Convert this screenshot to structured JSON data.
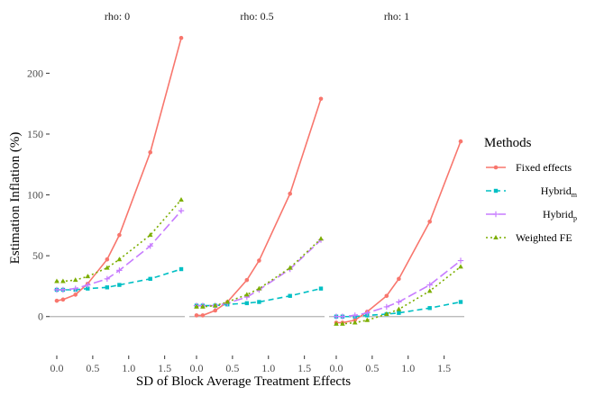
{
  "chart_data": {
    "type": "line",
    "xlabel": "SD of Block Average Treatment Effects",
    "ylabel": "Estimation Inflation (%)",
    "xlim": [
      -0.1,
      1.78
    ],
    "ylim": [
      -32,
      238
    ],
    "x_ticks": [
      0.0,
      0.5,
      1.0,
      1.5
    ],
    "x_tick_labels": [
      "0.0",
      "0.5",
      "1.0",
      "1.5"
    ],
    "y_ticks": [
      0,
      50,
      100,
      150,
      200
    ],
    "y_tick_labels": [
      "0",
      "50",
      "100",
      "150",
      "200"
    ],
    "reference_line": 0,
    "legend": {
      "title": "Methods",
      "position": "right",
      "entries": [
        {
          "label": "Fixed effects",
          "subscript": ""
        },
        {
          "label": "Hybrid",
          "subscript": "m"
        },
        {
          "label": "Hybrid",
          "subscript": "p"
        },
        {
          "label": "Weighted FE",
          "subscript": ""
        }
      ]
    },
    "panels": [
      {
        "title": "rho: 0",
        "x": [
          0,
          0.087,
          0.26,
          0.43,
          0.7,
          0.87,
          1.3,
          1.73
        ],
        "series": [
          {
            "name": "Fixed effects",
            "values": [
              13,
              14,
              18,
              27,
              47,
              67,
              135,
              229
            ]
          },
          {
            "name": "Hybrid_m",
            "values": [
              22,
              22,
              22,
              23,
              24,
              26,
              31,
              39
            ]
          },
          {
            "name": "Hybrid_p",
            "values": [
              22,
              22,
              23,
              26,
              31,
              38,
              58,
              87
            ]
          },
          {
            "name": "Weighted FE",
            "values": [
              29,
              29,
              30,
              33,
              40,
              47,
              67,
              96
            ]
          }
        ]
      },
      {
        "title": "rho: 0.5",
        "x": [
          0,
          0.087,
          0.26,
          0.43,
          0.7,
          0.87,
          1.3,
          1.73
        ],
        "series": [
          {
            "name": "Fixed effects",
            "values": [
              1,
              1,
              5,
              12,
              30,
              46,
              101,
              179
            ]
          },
          {
            "name": "Hybrid_m",
            "values": [
              9,
              9,
              9,
              10,
              11,
              12,
              17,
              23
            ]
          },
          {
            "name": "Hybrid_p",
            "values": [
              9,
              9,
              9,
              11,
              16,
              22,
              39,
              63
            ]
          },
          {
            "name": "Weighted FE",
            "values": [
              8,
              8,
              9,
              12,
              18,
              23,
              40,
              64
            ]
          }
        ]
      },
      {
        "title": "rho: 1",
        "x": [
          0,
          0.087,
          0.26,
          0.43,
          0.7,
          0.87,
          1.3,
          1.73
        ],
        "series": [
          {
            "name": "Fixed effects",
            "values": [
              -5,
              -5,
              -3,
              4,
              17,
              31,
              78,
              144
            ]
          },
          {
            "name": "Hybrid_m",
            "values": [
              0,
              0,
              0,
              1,
              2,
              3,
              7,
              12
            ]
          },
          {
            "name": "Hybrid_p",
            "values": [
              0,
              0,
              1,
              3,
              8,
              12,
              26,
              46
            ]
          },
          {
            "name": "Weighted FE",
            "values": [
              -6,
              -6,
              -5,
              -3,
              2,
              6,
              21,
              41
            ]
          }
        ]
      }
    ],
    "series_styles": [
      {
        "name": "Fixed effects",
        "color": "#F8766D",
        "dash": "",
        "marker": "circle"
      },
      {
        "name": "Hybrid_m",
        "color": "#00BFC4",
        "dash": "6,4",
        "marker": "square"
      },
      {
        "name": "Hybrid_p",
        "color": "#C77CFF",
        "dash": "10,4",
        "marker": "plus"
      },
      {
        "name": "Weighted FE",
        "color": "#7CAE00",
        "dash": "2,3",
        "marker": "triangle"
      }
    ]
  }
}
